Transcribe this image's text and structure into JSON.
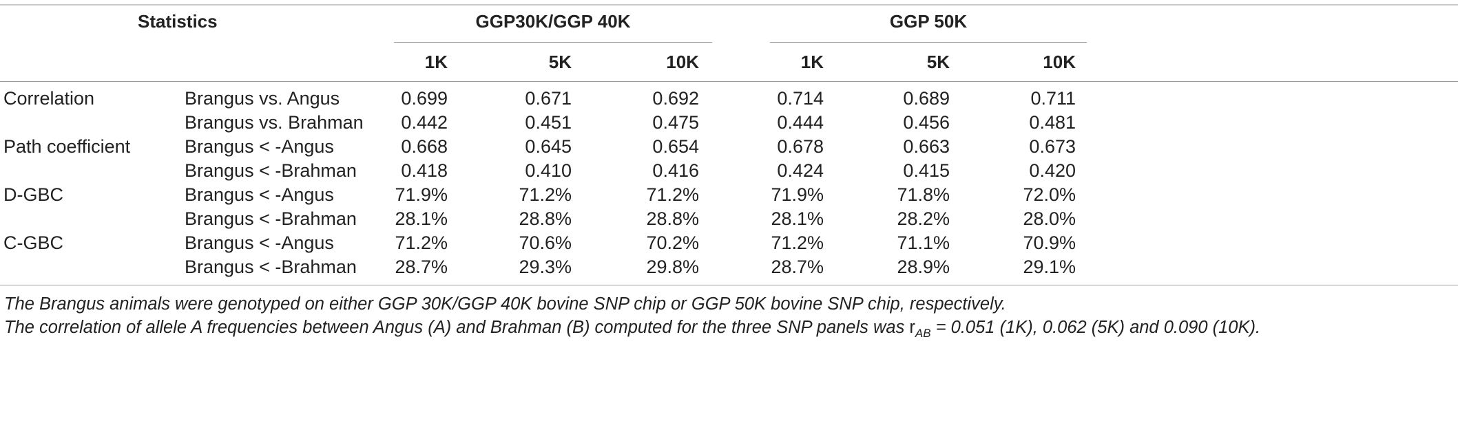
{
  "header": {
    "statistics_label": "Statistics",
    "group1": "GGP30K/GGP 40K",
    "group2": "GGP 50K",
    "panels": [
      "1K",
      "5K",
      "10K",
      "1K",
      "5K",
      "10K"
    ]
  },
  "rows": [
    {
      "stat": "Correlation",
      "comparison": "Brangus vs. Angus",
      "values": [
        "0.699",
        "0.671",
        "0.692",
        "0.714",
        "0.689",
        "0.711"
      ]
    },
    {
      "stat": "",
      "comparison": "Brangus vs. Brahman",
      "values": [
        "0.442",
        "0.451",
        "0.475",
        "0.444",
        "0.456",
        "0.481"
      ]
    },
    {
      "stat": "Path coefficient",
      "comparison": "Brangus < -Angus",
      "values": [
        "0.668",
        "0.645",
        "0.654",
        "0.678",
        "0.663",
        "0.673"
      ]
    },
    {
      "stat": "",
      "comparison": "Brangus < -Brahman",
      "values": [
        "0.418",
        "0.410",
        "0.416",
        "0.424",
        "0.415",
        "0.420"
      ]
    },
    {
      "stat": "D-GBC",
      "comparison": "Brangus < -Angus",
      "values": [
        "71.9%",
        "71.2%",
        "71.2%",
        "71.9%",
        "71.8%",
        "72.0%"
      ]
    },
    {
      "stat": "",
      "comparison": "Brangus < -Brahman",
      "values": [
        "28.1%",
        "28.8%",
        "28.8%",
        "28.1%",
        "28.2%",
        "28.0%"
      ]
    },
    {
      "stat": "C-GBC",
      "comparison": "Brangus < -Angus",
      "values": [
        "71.2%",
        "70.6%",
        "70.2%",
        "71.2%",
        "71.1%",
        "70.9%"
      ]
    },
    {
      "stat": "",
      "comparison": "Brangus < -Brahman",
      "values": [
        "28.7%",
        "29.3%",
        "29.8%",
        "28.7%",
        "28.9%",
        "29.1%"
      ]
    }
  ],
  "notes": {
    "line1": "The Brangus animals were genotyped on either GGP 30K/GGP 40K bovine SNP chip or GGP 50K bovine SNP chip, respectively.",
    "line2_prefix": "The correlation of allele A frequencies between Angus (A) and Brahman (B) computed for the three SNP panels was ",
    "line2_r": "r",
    "line2_sub": "AB",
    "line2_suffix": " = 0.051 (1K), 0.062 (5K) and 0.090 (10K)."
  }
}
